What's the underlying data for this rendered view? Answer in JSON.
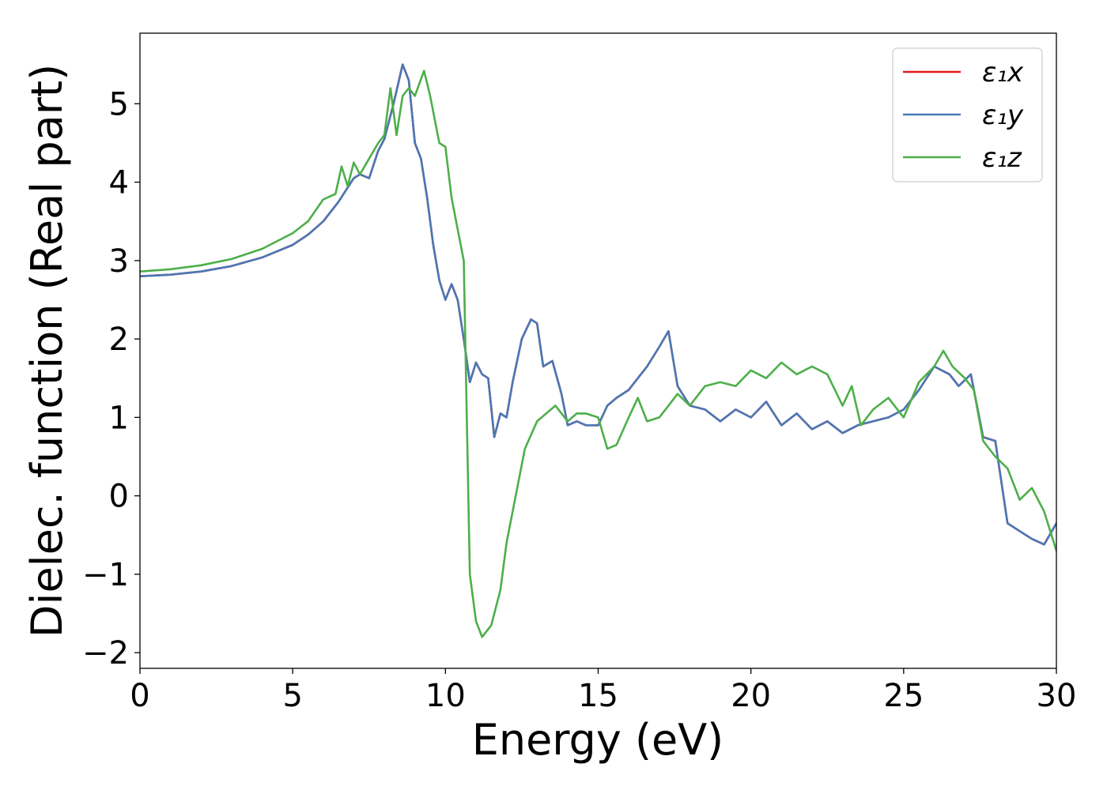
{
  "chart_data": {
    "type": "line",
    "title": "",
    "xlabel": "Energy (eV)",
    "ylabel": "Dielec. function (Real part)",
    "xlim": [
      0,
      30
    ],
    "ylim": [
      -2.2,
      5.9
    ],
    "xticks": [
      0,
      5,
      10,
      15,
      20,
      25,
      30
    ],
    "xtick_labels": [
      "0",
      "5",
      "10",
      "15",
      "20",
      "25",
      "30"
    ],
    "yticks": [
      -2,
      -1,
      0,
      1,
      2,
      3,
      4,
      5
    ],
    "ytick_labels": [
      "−2",
      "−1",
      "0",
      "1",
      "2",
      "3",
      "4",
      "5"
    ],
    "grid": false,
    "legend_position": "top-right",
    "series": [
      {
        "name": "ε₁x",
        "color": "#e41a1c",
        "x": [
          0,
          1,
          2,
          3,
          4,
          5,
          5.5,
          6,
          6.5,
          7,
          7.2,
          7.5,
          7.8,
          8,
          8.3,
          8.6,
          8.8,
          9,
          9.2,
          9.4,
          9.6,
          9.8,
          10,
          10.2,
          10.4,
          10.6,
          10.8,
          11,
          11.2,
          11.4,
          11.6,
          11.8,
          12,
          12.2,
          12.5,
          12.8,
          13,
          13.2,
          13.5,
          13.8,
          14,
          14.3,
          14.6,
          15,
          15.3,
          15.6,
          16,
          16.3,
          16.6,
          17,
          17.3,
          17.6,
          18,
          18.5,
          19,
          19.5,
          20,
          20.5,
          21,
          21.5,
          22,
          22.5,
          23,
          23.5,
          24,
          24.5,
          25,
          25.5,
          26,
          26.5,
          26.8,
          27.2,
          27.6,
          28,
          28.4,
          28.8,
          29.2,
          29.6,
          30
        ],
        "y": [
          2.8,
          2.82,
          2.86,
          2.93,
          3.04,
          3.2,
          3.33,
          3.5,
          3.75,
          4.05,
          4.1,
          4.05,
          4.4,
          4.55,
          5.0,
          5.5,
          5.3,
          4.5,
          4.3,
          3.8,
          3.2,
          2.75,
          2.5,
          2.7,
          2.5,
          2.0,
          1.45,
          1.7,
          1.55,
          1.5,
          0.75,
          1.05,
          1.0,
          1.45,
          2.0,
          2.25,
          2.2,
          1.65,
          1.72,
          1.3,
          0.9,
          0.95,
          0.9,
          0.9,
          1.15,
          1.25,
          1.35,
          1.5,
          1.65,
          1.9,
          2.1,
          1.4,
          1.15,
          1.1,
          0.95,
          1.1,
          1.0,
          1.2,
          0.9,
          1.05,
          0.85,
          0.95,
          0.8,
          0.9,
          0.95,
          1.0,
          1.1,
          1.35,
          1.65,
          1.55,
          1.4,
          1.55,
          0.75,
          0.7,
          -0.35,
          -0.45,
          -0.55,
          -0.62,
          -0.35
        ]
      },
      {
        "name": "ε₁y",
        "color": "#4a78b5",
        "x": [
          0,
          1,
          2,
          3,
          4,
          5,
          5.5,
          6,
          6.5,
          7,
          7.2,
          7.5,
          7.8,
          8,
          8.3,
          8.6,
          8.8,
          9,
          9.2,
          9.4,
          9.6,
          9.8,
          10,
          10.2,
          10.4,
          10.6,
          10.8,
          11,
          11.2,
          11.4,
          11.6,
          11.8,
          12,
          12.2,
          12.5,
          12.8,
          13,
          13.2,
          13.5,
          13.8,
          14,
          14.3,
          14.6,
          15,
          15.3,
          15.6,
          16,
          16.3,
          16.6,
          17,
          17.3,
          17.6,
          18,
          18.5,
          19,
          19.5,
          20,
          20.5,
          21,
          21.5,
          22,
          22.5,
          23,
          23.5,
          24,
          24.5,
          25,
          25.5,
          26,
          26.5,
          26.8,
          27.2,
          27.6,
          28,
          28.4,
          28.8,
          29.2,
          29.6,
          30
        ],
        "y": [
          2.8,
          2.82,
          2.86,
          2.93,
          3.04,
          3.2,
          3.33,
          3.5,
          3.75,
          4.05,
          4.1,
          4.05,
          4.4,
          4.55,
          5.0,
          5.5,
          5.3,
          4.5,
          4.3,
          3.8,
          3.2,
          2.75,
          2.5,
          2.7,
          2.5,
          2.0,
          1.45,
          1.7,
          1.55,
          1.5,
          0.75,
          1.05,
          1.0,
          1.45,
          2.0,
          2.25,
          2.2,
          1.65,
          1.72,
          1.3,
          0.9,
          0.95,
          0.9,
          0.9,
          1.15,
          1.25,
          1.35,
          1.5,
          1.65,
          1.9,
          2.1,
          1.4,
          1.15,
          1.1,
          0.95,
          1.1,
          1.0,
          1.2,
          0.9,
          1.05,
          0.85,
          0.95,
          0.8,
          0.9,
          0.95,
          1.0,
          1.1,
          1.35,
          1.65,
          1.55,
          1.4,
          1.55,
          0.75,
          0.7,
          -0.35,
          -0.45,
          -0.55,
          -0.62,
          -0.35
        ]
      },
      {
        "name": "ε₁z",
        "color": "#4daf4a",
        "x": [
          0,
          1,
          2,
          3,
          4,
          5,
          5.5,
          6,
          6.4,
          6.6,
          6.8,
          7,
          7.2,
          7.5,
          7.8,
          8,
          8.2,
          8.4,
          8.6,
          8.8,
          9,
          9.3,
          9.5,
          9.8,
          10,
          10.2,
          10.4,
          10.6,
          10.8,
          11,
          11.2,
          11.5,
          11.8,
          12,
          12.3,
          12.6,
          13,
          13.3,
          13.6,
          14,
          14.3,
          14.6,
          15,
          15.3,
          15.6,
          16,
          16.3,
          16.6,
          17,
          17.3,
          17.6,
          18,
          18.5,
          19,
          19.5,
          20,
          20.5,
          21,
          21.5,
          22,
          22.5,
          23,
          23.3,
          23.6,
          24,
          24.5,
          25,
          25.5,
          26,
          26.3,
          26.6,
          27,
          27.3,
          27.6,
          28,
          28.4,
          28.8,
          29.2,
          29.6,
          30
        ],
        "y": [
          2.86,
          2.89,
          2.94,
          3.02,
          3.15,
          3.35,
          3.5,
          3.78,
          3.85,
          4.2,
          3.95,
          4.25,
          4.1,
          4.3,
          4.5,
          4.6,
          5.2,
          4.6,
          5.1,
          5.2,
          5.1,
          5.42,
          5.1,
          4.5,
          4.45,
          3.8,
          3.4,
          3.0,
          -1.0,
          -1.6,
          -1.8,
          -1.65,
          -1.2,
          -0.6,
          0.0,
          0.6,
          0.95,
          1.05,
          1.15,
          0.95,
          1.05,
          1.05,
          1.0,
          0.6,
          0.65,
          1.0,
          1.25,
          0.95,
          1.0,
          1.15,
          1.3,
          1.15,
          1.4,
          1.45,
          1.4,
          1.6,
          1.5,
          1.7,
          1.55,
          1.65,
          1.55,
          1.15,
          1.4,
          0.9,
          1.1,
          1.25,
          1.0,
          1.45,
          1.65,
          1.85,
          1.65,
          1.5,
          1.35,
          0.7,
          0.5,
          0.35,
          -0.05,
          0.1,
          -0.2,
          -0.7
        ]
      }
    ]
  }
}
